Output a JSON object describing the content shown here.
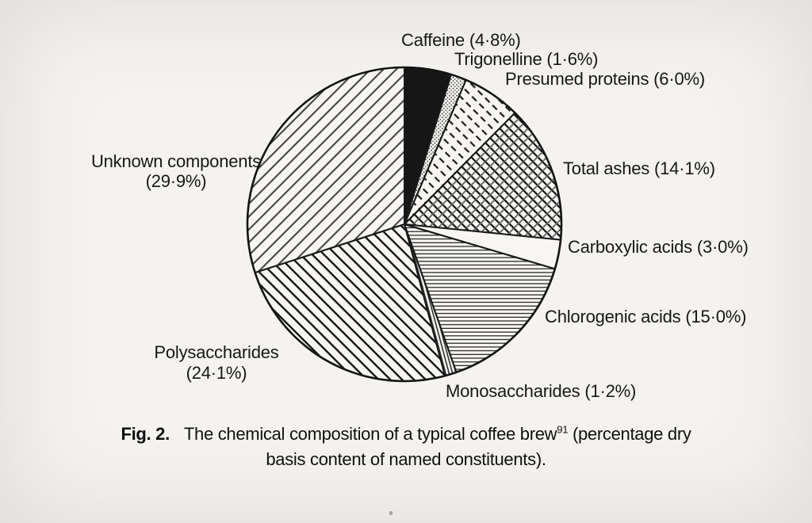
{
  "page": {
    "background_color": "#f5f3f0",
    "ink_color": "#1a1a1a"
  },
  "caption": {
    "fig_label": "Fig. 2.",
    "text_before_sup": "The chemical composition of a typical coffee brew",
    "superscript": "91",
    "text_after_sup": " (percentage dry",
    "line2": "basis content of named constituents)."
  },
  "chart_data": {
    "type": "pie",
    "title": "The chemical composition of a typical coffee brew (percentage dry basis content of named constituents)",
    "unit": "%",
    "direction": "clockwise",
    "start_angle_deg": 0,
    "slices": [
      {
        "name": "Caffeine",
        "value": 4.8,
        "display": "Caffeine (4·8%)",
        "pattern": "solid-black"
      },
      {
        "name": "Trigonelline",
        "value": 1.6,
        "display": "Trigonelline (1·6%)",
        "pattern": "stipple"
      },
      {
        "name": "Presumed proteins",
        "value": 6.0,
        "display": "Presumed proteins (6·0%)",
        "pattern": "dashed-diagonal"
      },
      {
        "name": "Total ashes",
        "value": 14.1,
        "display": "Total ashes (14·1%)",
        "pattern": "crosshatch"
      },
      {
        "name": "Carboxylic acids",
        "value": 3.0,
        "display": "Carboxylic acids (3·0%)",
        "pattern": "plain-white"
      },
      {
        "name": "Chlorogenic acids",
        "value": 15.0,
        "display": "Chlorogenic acids (15·0%)",
        "pattern": "horizontal-lines"
      },
      {
        "name": "Monosaccharides",
        "value": 1.2,
        "display": "Monosaccharides (1·2%)",
        "pattern": "vertical-lines"
      },
      {
        "name": "Polysaccharides",
        "value": 24.1,
        "display": "Polysaccharides (24·1%)",
        "pattern": "diagonal-down",
        "display_lines": [
          "Polysaccharides",
          "(24·1%)"
        ]
      },
      {
        "name": "Unknown components",
        "value": 29.9,
        "display": "Unknown components (29·9%)",
        "pattern": "diagonal-up",
        "display_lines": [
          "Unknown components",
          "(29·9%)"
        ]
      }
    ]
  }
}
